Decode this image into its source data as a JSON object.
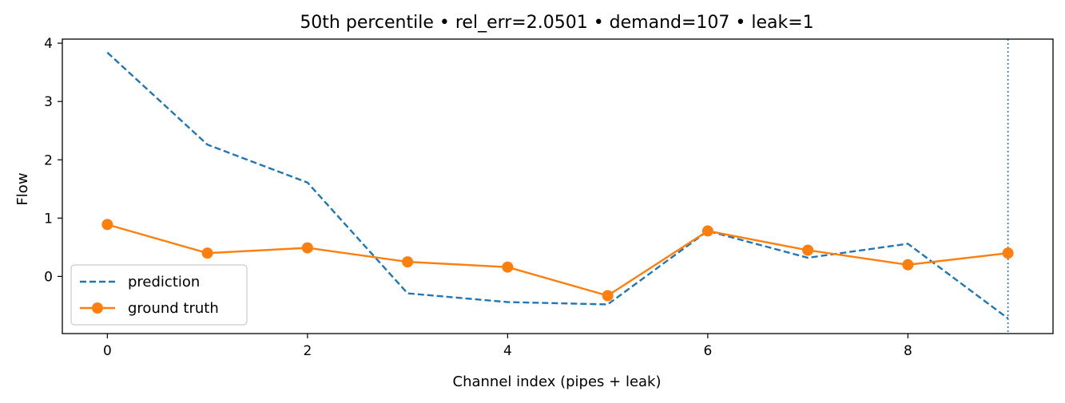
{
  "chart_data": {
    "type": "line",
    "title": "50th percentile • rel_err=2.0501 • demand=107 • leak=1",
    "xlabel": "Channel index (pipes + leak)",
    "ylabel": "Flow",
    "xlim": [
      -0.45,
      9.45
    ],
    "ylim": [
      -0.98,
      4.07
    ],
    "xticks": [
      0,
      2,
      4,
      6,
      8
    ],
    "yticks": [
      0,
      1,
      2,
      3,
      4
    ],
    "x": [
      0,
      1,
      2,
      3,
      4,
      5,
      6,
      7,
      8,
      9
    ],
    "series": [
      {
        "name": "prediction",
        "color": "#1f77b4",
        "style": "dashed",
        "values": [
          3.84,
          2.26,
          1.61,
          -0.29,
          -0.44,
          -0.48,
          0.78,
          0.32,
          0.56,
          -0.72
        ]
      },
      {
        "name": "ground truth",
        "color": "#ff7f0e",
        "style": "solid-marker",
        "values": [
          0.89,
          0.4,
          0.49,
          0.25,
          0.16,
          -0.33,
          0.78,
          0.45,
          0.2,
          0.4
        ]
      }
    ],
    "vline": {
      "x": 9,
      "color": "#1f77b4",
      "style": "dotted"
    },
    "legend_position": "lower-left",
    "grid": false
  }
}
